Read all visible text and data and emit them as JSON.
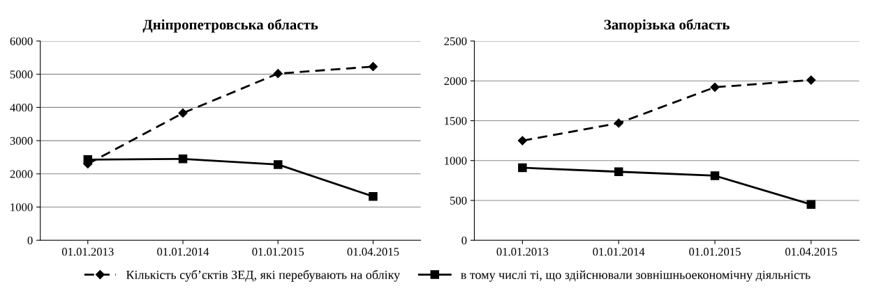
{
  "chart_data": [
    {
      "type": "line",
      "title": "Дніпропетровська область",
      "categories": [
        "01.01.2013",
        "01.01.2014",
        "01.01.2015",
        "01.04.2015"
      ],
      "ylim": [
        0,
        6000
      ],
      "yticks": [
        0,
        1000,
        2000,
        3000,
        4000,
        5000,
        6000
      ],
      "grid": "y",
      "legend": "bottom",
      "series": [
        {
          "name": "Кількість суб’єктів ЗЕД, які перебувають на обліку",
          "color": "#000000",
          "marker": "diamond",
          "line_style": "dashed",
          "values": [
            2300,
            3830,
            5020,
            5230
          ]
        },
        {
          "name": "в тому числі ті, що здійснювали зовнішньоекономічну діяльність",
          "color": "#000000",
          "marker": "square",
          "line_style": "solid",
          "values": [
            2430,
            2450,
            2280,
            1320
          ]
        }
      ]
    },
    {
      "type": "line",
      "title": "Запорізька область",
      "categories": [
        "01.01.2013",
        "01.01.2014",
        "01.01.2015",
        "01.04.2015"
      ],
      "ylim": [
        0,
        2500
      ],
      "yticks": [
        0,
        500,
        1000,
        1500,
        2000,
        2500
      ],
      "grid": "y",
      "legend": false,
      "series": [
        {
          "color": "#000000",
          "marker": "diamond",
          "line_style": "dashed",
          "values": [
            1250,
            1470,
            1920,
            2010
          ]
        },
        {
          "color": "#000000",
          "marker": "square",
          "line_style": "solid",
          "values": [
            910,
            860,
            810,
            450
          ]
        }
      ]
    }
  ]
}
